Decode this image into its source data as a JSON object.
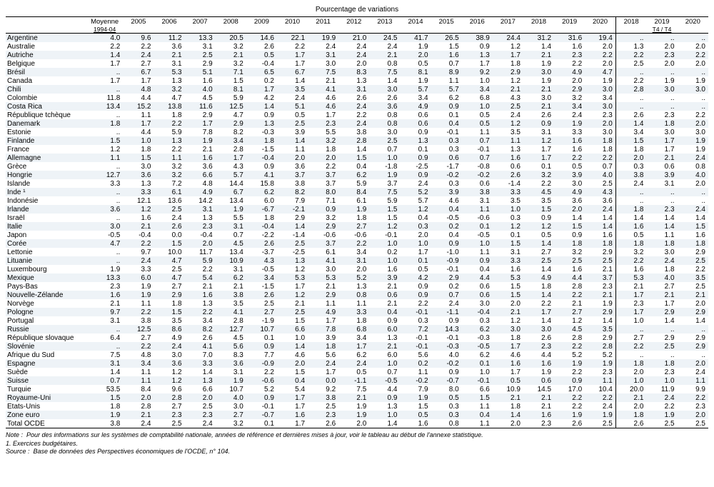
{
  "title": "Pourcentage de variations",
  "header": {
    "avg_label": "Moyenne",
    "avg_sub": "1994-04",
    "years": [
      "2005",
      "2006",
      "2007",
      "2008",
      "2009",
      "2010",
      "2011",
      "2012",
      "2013",
      "2014",
      "2015",
      "2016",
      "2017",
      "2018",
      "2019",
      "2020"
    ],
    "q_years": [
      "2018",
      "2019",
      "2020"
    ],
    "q_sub": "T4 / T4"
  },
  "rows": [
    {
      "label": "Argentine",
      "vals": [
        "4.0",
        "9.6",
        "11.2",
        "13.3",
        "20.5",
        "14.6",
        "22.1",
        "19.9",
        "21.0",
        "24.5",
        "41.7",
        "26.5",
        "38.9",
        "24.4",
        "31.2",
        "31.6",
        "19.4"
      ],
      "q": [
        "..",
        "..",
        ".."
      ]
    },
    {
      "label": "Australie",
      "vals": [
        "2.2",
        "2.2",
        "3.6",
        "3.1",
        "3.2",
        "2.6",
        "2.2",
        "2.4",
        "2.4",
        "2.4",
        "1.9",
        "1.5",
        "0.9",
        "1.2",
        "1.4",
        "1.6",
        "2.0"
      ],
      "q": [
        "1.3",
        "2.0",
        "2.0"
      ]
    },
    {
      "label": "Autriche",
      "vals": [
        "1.4",
        "2.4",
        "2.1",
        "2.5",
        "2.1",
        "0.5",
        "1.7",
        "3.1",
        "2.4",
        "2.1",
        "2.0",
        "1.6",
        "1.3",
        "1.7",
        "2.1",
        "2.3",
        "2.2"
      ],
      "q": [
        "2.2",
        "2.3",
        "2.2"
      ]
    },
    {
      "label": "Belgique",
      "vals": [
        "1.7",
        "2.7",
        "3.1",
        "2.9",
        "3.2",
        "-0.4",
        "1.7",
        "3.0",
        "2.0",
        "0.8",
        "0.5",
        "0.7",
        "1.7",
        "1.8",
        "1.9",
        "2.2",
        "2.0"
      ],
      "q": [
        "2.5",
        "2.0",
        "2.0"
      ]
    },
    {
      "label": "Brésil",
      "vals": [
        "..",
        "6.7",
        "5.3",
        "5.1",
        "7.1",
        "6.5",
        "6.7",
        "7.5",
        "8.3",
        "7.5",
        "8.1",
        "8.9",
        "9.2",
        "2.9",
        "3.0",
        "4.9",
        "4.7"
      ],
      "q": [
        "..",
        "..",
        ".."
      ]
    },
    {
      "label": "Canada",
      "vals": [
        "1.7",
        "1.7",
        "1.3",
        "1.6",
        "1.5",
        "0.2",
        "1.4",
        "2.1",
        "1.3",
        "1.4",
        "1.9",
        "1.1",
        "1.0",
        "1.2",
        "1.9",
        "2.0",
        "1.9"
      ],
      "q": [
        "2.2",
        "1.9",
        "1.9"
      ]
    },
    {
      "label": "Chili",
      "vals": [
        "..",
        "4.8",
        "3.2",
        "4.0",
        "8.1",
        "1.7",
        "3.5",
        "4.1",
        "3.1",
        "3.0",
        "5.7",
        "5.7",
        "3.4",
        "2.1",
        "2.1",
        "2.9",
        "3.0"
      ],
      "q": [
        "2.8",
        "3.0",
        "3.0"
      ]
    },
    {
      "label": "Colombie",
      "vals": [
        "11.8",
        "4.4",
        "4.7",
        "4.5",
        "5.9",
        "4.2",
        "2.4",
        "4.6",
        "2.6",
        "2.6",
        "3.4",
        "6.2",
        "6.8",
        "4.3",
        "3.0",
        "3.2",
        "3.4"
      ],
      "q": [
        "..",
        "..",
        ".."
      ]
    },
    {
      "label": "Costa Rica",
      "vals": [
        "13.4",
        "15.2",
        "13.8",
        "11.6",
        "12.5",
        "1.4",
        "5.1",
        "4.6",
        "2.4",
        "3.6",
        "4.9",
        "0.9",
        "1.0",
        "2.5",
        "2.1",
        "3.4",
        "3.0"
      ],
      "q": [
        "..",
        "..",
        ".."
      ]
    },
    {
      "label": "République tchèque",
      "vals": [
        "..",
        "1.1",
        "1.8",
        "2.9",
        "4.7",
        "0.9",
        "0.5",
        "1.7",
        "2.2",
        "0.8",
        "0.6",
        "0.1",
        "0.5",
        "2.4",
        "2.6",
        "2.4",
        "2.3"
      ],
      "q": [
        "2.6",
        "2.3",
        "2.2"
      ]
    },
    {
      "label": "Danemark",
      "vals": [
        "1.8",
        "1.7",
        "2.2",
        "1.7",
        "2.9",
        "1.3",
        "2.5",
        "2.3",
        "2.4",
        "0.8",
        "0.6",
        "0.4",
        "0.5",
        "1.2",
        "0.9",
        "1.9",
        "2.0"
      ],
      "q": [
        "1.4",
        "1.8",
        "2.0"
      ]
    },
    {
      "label": "Estonie",
      "vals": [
        "..",
        "4.4",
        "5.9",
        "7.8",
        "8.2",
        "-0.3",
        "3.9",
        "5.5",
        "3.8",
        "3.0",
        "0.9",
        "-0.1",
        "1.1",
        "3.5",
        "3.1",
        "3.3",
        "3.0"
      ],
      "q": [
        "3.4",
        "3.0",
        "3.0"
      ]
    },
    {
      "label": "Finlande",
      "vals": [
        "1.5",
        "1.0",
        "1.3",
        "1.9",
        "3.4",
        "1.8",
        "1.4",
        "3.2",
        "2.8",
        "2.5",
        "1.3",
        "0.3",
        "0.7",
        "1.1",
        "1.2",
        "1.6",
        "1.8"
      ],
      "q": [
        "1.5",
        "1.7",
        "1.9"
      ]
    },
    {
      "label": "France",
      "vals": [
        "1.2",
        "1.8",
        "2.2",
        "2.1",
        "2.8",
        "-1.5",
        "1.1",
        "1.8",
        "1.4",
        "0.7",
        "0.1",
        "0.3",
        "-0.1",
        "1.3",
        "1.7",
        "1.6",
        "1.8"
      ],
      "q": [
        "1.8",
        "1.7",
        "1.9"
      ]
    },
    {
      "label": "Allemagne",
      "vals": [
        "1.1",
        "1.5",
        "1.1",
        "1.6",
        "1.7",
        "-0.4",
        "2.0",
        "2.0",
        "1.5",
        "1.0",
        "0.9",
        "0.6",
        "0.7",
        "1.6",
        "1.7",
        "2.2",
        "2.2"
      ],
      "q": [
        "2.0",
        "2.1",
        "2.4"
      ]
    },
    {
      "label": "Grèce",
      "vals": [
        "..",
        "3.0",
        "3.2",
        "3.6",
        "4.3",
        "0.9",
        "3.6",
        "2.2",
        "0.4",
        "-1.8",
        "-2.5",
        "-1.7",
        "-0.8",
        "0.6",
        "0.1",
        "0.5",
        "0.7"
      ],
      "q": [
        "0.3",
        "0.6",
        "0.8"
      ]
    },
    {
      "label": "Hongrie",
      "vals": [
        "12.7",
        "3.6",
        "3.2",
        "6.6",
        "5.7",
        "4.1",
        "3.7",
        "3.7",
        "6.2",
        "1.9",
        "0.9",
        "-0.2",
        "-0.2",
        "2.6",
        "3.2",
        "3.9",
        "4.0"
      ],
      "q": [
        "3.8",
        "3.9",
        "4.0"
      ]
    },
    {
      "label": "Islande",
      "vals": [
        "3.3",
        "1.3",
        "7.2",
        "4.8",
        "14.4",
        "15.8",
        "3.8",
        "3.7",
        "5.9",
        "3.7",
        "2.4",
        "0.3",
        "0.6",
        "-1.4",
        "2.2",
        "3.0",
        "2.5"
      ],
      "q": [
        "2.4",
        "3.1",
        "2.0"
      ]
    },
    {
      "label": "Inde ¹",
      "vals": [
        "..",
        "3.3",
        "6.1",
        "4.9",
        "6.7",
        "6.2",
        "8.2",
        "8.0",
        "8.4",
        "7.5",
        "5.2",
        "3.9",
        "3.8",
        "3.3",
        "4.5",
        "4.9",
        "4.3"
      ],
      "q": [
        "..",
        "..",
        ".."
      ]
    },
    {
      "label": "Indonésie",
      "vals": [
        "..",
        "12.1",
        "13.6",
        "14.2",
        "13.4",
        "6.0",
        "7.9",
        "7.1",
        "6.1",
        "5.9",
        "5.7",
        "4.6",
        "3.1",
        "3.5",
        "3.5",
        "3.6",
        "3.6"
      ],
      "q": [
        "..",
        "..",
        ".."
      ]
    },
    {
      "label": "Irlande",
      "vals": [
        "3.6",
        "1.2",
        "2.5",
        "3.1",
        "1.9",
        "-6.7",
        "-2.1",
        "0.9",
        "1.9",
        "1.5",
        "1.2",
        "0.4",
        "1.1",
        "1.0",
        "1.5",
        "2.0",
        "2.4"
      ],
      "q": [
        "1.8",
        "2.3",
        "2.4"
      ]
    },
    {
      "label": "Israël",
      "vals": [
        "..",
        "1.6",
        "2.4",
        "1.3",
        "5.5",
        "1.8",
        "2.9",
        "3.2",
        "1.8",
        "1.5",
        "0.4",
        "-0.5",
        "-0.6",
        "0.3",
        "0.9",
        "1.4",
        "1.4"
      ],
      "q": [
        "1.4",
        "1.4",
        "1.4"
      ]
    },
    {
      "label": "Italie",
      "vals": [
        "3.0",
        "2.1",
        "2.6",
        "2.3",
        "3.1",
        "-0.4",
        "1.4",
        "2.9",
        "2.7",
        "1.2",
        "0.3",
        "0.2",
        "0.1",
        "1.2",
        "1.2",
        "1.5",
        "1.4"
      ],
      "q": [
        "1.6",
        "1.4",
        "1.5"
      ]
    },
    {
      "label": "Japon",
      "vals": [
        "-0.5",
        "-0.4",
        "0.0",
        "-0.4",
        "0.7",
        "-2.2",
        "-1.4",
        "-0.6",
        "-0.6",
        "-0.1",
        "2.0",
        "0.4",
        "-0.5",
        "0.1",
        "0.5",
        "0.9",
        "1.6"
      ],
      "q": [
        "0.5",
        "1.1",
        "1.6"
      ]
    },
    {
      "label": "Corée",
      "vals": [
        "4.7",
        "2.2",
        "1.5",
        "2.0",
        "4.5",
        "2.6",
        "2.5",
        "3.7",
        "2.2",
        "1.0",
        "1.0",
        "0.9",
        "1.0",
        "1.5",
        "1.4",
        "1.8",
        "1.8"
      ],
      "q": [
        "1.8",
        "1.8",
        "1.8"
      ]
    },
    {
      "label": "Lettonie",
      "vals": [
        "..",
        "9.7",
        "10.0",
        "11.7",
        "13.4",
        "-3.7",
        "-2.5",
        "6.1",
        "3.4",
        "0.2",
        "1.7",
        "-1.0",
        "1.1",
        "3.1",
        "2.7",
        "3.2",
        "2.9"
      ],
      "q": [
        "3.2",
        "3.0",
        "2.9"
      ]
    },
    {
      "label": "Lituanie",
      "vals": [
        "..",
        "2.4",
        "4.7",
        "5.9",
        "10.9",
        "4.3",
        "1.3",
        "4.1",
        "3.1",
        "1.0",
        "0.1",
        "-0.9",
        "0.9",
        "3.3",
        "2.5",
        "2.5",
        "2.5"
      ],
      "q": [
        "2.2",
        "2.4",
        "2.5"
      ]
    },
    {
      "label": "Luxembourg",
      "vals": [
        "1.9",
        "3.3",
        "2.5",
        "2.2",
        "3.1",
        "-0.5",
        "1.2",
        "3.0",
        "2.0",
        "1.6",
        "0.5",
        "-0.1",
        "0.4",
        "1.6",
        "1.4",
        "1.6",
        "2.1"
      ],
      "q": [
        "1.6",
        "1.8",
        "2.2"
      ]
    },
    {
      "label": "Mexique",
      "vals": [
        "13.3",
        "6.0",
        "4.7",
        "5.4",
        "6.2",
        "3.4",
        "5.3",
        "5.3",
        "5.2",
        "3.9",
        "4.2",
        "2.9",
        "4.4",
        "5.3",
        "4.9",
        "4.4",
        "3.7"
      ],
      "q": [
        "5.3",
        "4.0",
        "3.5"
      ]
    },
    {
      "label": "Pays-Bas",
      "vals": [
        "2.3",
        "1.9",
        "2.7",
        "2.1",
        "2.1",
        "-1.5",
        "1.7",
        "2.1",
        "1.3",
        "2.1",
        "0.9",
        "0.2",
        "0.6",
        "1.5",
        "1.8",
        "2.8",
        "2.3"
      ],
      "q": [
        "2.1",
        "2.7",
        "2.5"
      ]
    },
    {
      "label": "Nouvelle-Zélande",
      "vals": [
        "1.6",
        "1.9",
        "2.9",
        "1.6",
        "3.8",
        "2.6",
        "1.2",
        "2.9",
        "0.8",
        "0.6",
        "0.9",
        "0.7",
        "0.6",
        "1.5",
        "1.4",
        "2.2",
        "2.1"
      ],
      "q": [
        "1.7",
        "2.1",
        "2.1"
      ]
    },
    {
      "label": "Norvège",
      "vals": [
        "2.1",
        "1.1",
        "1.8",
        "1.3",
        "3.5",
        "2.5",
        "2.1",
        "1.1",
        "1.1",
        "2.1",
        "2.2",
        "2.4",
        "3.0",
        "2.0",
        "2.2",
        "2.1",
        "1.9"
      ],
      "q": [
        "2.3",
        "1.7",
        "2.0"
      ]
    },
    {
      "label": "Pologne",
      "vals": [
        "9.7",
        "2.2",
        "1.5",
        "2.2",
        "4.1",
        "2.7",
        "2.5",
        "4.9",
        "3.3",
        "0.4",
        "-0.1",
        "-1.1",
        "-0.4",
        "2.1",
        "1.7",
        "2.7",
        "2.9"
      ],
      "q": [
        "1.7",
        "2.9",
        "2.9"
      ]
    },
    {
      "label": "Portugal",
      "vals": [
        "3.1",
        "3.8",
        "3.5",
        "3.4",
        "2.8",
        "-1.9",
        "1.5",
        "1.7",
        "1.8",
        "0.9",
        "0.3",
        "0.9",
        "0.3",
        "1.2",
        "1.4",
        "1.2",
        "1.4"
      ],
      "q": [
        "1.0",
        "1.4",
        "1.4"
      ]
    },
    {
      "label": "Russie",
      "vals": [
        "..",
        "12.5",
        "8.6",
        "8.2",
        "12.7",
        "10.7",
        "6.6",
        "7.8",
        "6.8",
        "6.0",
        "7.2",
        "14.3",
        "6.2",
        "3.0",
        "3.0",
        "4.5",
        "3.5"
      ],
      "q": [
        "..",
        "..",
        ".."
      ]
    },
    {
      "label": "République slovaque",
      "vals": [
        "6.4",
        "2.7",
        "4.9",
        "2.6",
        "4.5",
        "0.1",
        "1.0",
        "3.9",
        "3.4",
        "1.3",
        "-0.1",
        "-0.1",
        "-0.3",
        "1.8",
        "2.6",
        "2.8",
        "2.9"
      ],
      "q": [
        "2.7",
        "2.9",
        "2.9"
      ]
    },
    {
      "label": "Slovénie",
      "vals": [
        "..",
        "2.2",
        "2.4",
        "4.1",
        "5.6",
        "0.9",
        "1.4",
        "1.8",
        "1.7",
        "2.1",
        "-0.1",
        "-0.3",
        "-0.5",
        "1.7",
        "2.3",
        "2.2",
        "2.8"
      ],
      "q": [
        "2.2",
        "2.5",
        "2.9"
      ]
    },
    {
      "label": "Afrique du Sud",
      "vals": [
        "7.5",
        "4.8",
        "3.0",
        "7.0",
        "8.3",
        "7.7",
        "4.6",
        "5.6",
        "6.2",
        "6.0",
        "5.6",
        "4.0",
        "6.2",
        "4.6",
        "4.4",
        "5.2",
        "5.2"
      ],
      "q": [
        "..",
        "..",
        ".."
      ]
    },
    {
      "label": "Espagne",
      "vals": [
        "3.1",
        "3.4",
        "3.6",
        "3.3",
        "3.6",
        "-0.9",
        "2.0",
        "2.4",
        "2.4",
        "1.0",
        "0.2",
        "-0.2",
        "0.1",
        "1.6",
        "1.6",
        "1.9",
        "1.9"
      ],
      "q": [
        "1.8",
        "1.8",
        "2.0"
      ]
    },
    {
      "label": "Suède",
      "vals": [
        "1.4",
        "1.1",
        "1.2",
        "1.4",
        "3.1",
        "2.2",
        "1.5",
        "1.7",
        "0.5",
        "0.7",
        "1.1",
        "0.9",
        "1.0",
        "1.7",
        "1.9",
        "2.2",
        "2.3"
      ],
      "q": [
        "2.0",
        "2.3",
        "2.4"
      ]
    },
    {
      "label": "Suisse",
      "vals": [
        "0.7",
        "1.1",
        "1.2",
        "1.3",
        "1.9",
        "-0.6",
        "0.4",
        "0.0",
        "-1.1",
        "-0.5",
        "-0.2",
        "-0.7",
        "-0.1",
        "0.5",
        "0.6",
        "0.9",
        "1.1"
      ],
      "q": [
        "1.0",
        "1.0",
        "1.1"
      ]
    },
    {
      "label": "Turquie",
      "vals": [
        "53.5",
        "8.4",
        "9.6",
        "6.6",
        "10.7",
        "5.2",
        "5.4",
        "9.2",
        "7.5",
        "4.4",
        "7.9",
        "8.0",
        "6.6",
        "10.9",
        "14.5",
        "17.0",
        "10.4"
      ],
      "q": [
        "20.0",
        "11.9",
        "9.9"
      ]
    },
    {
      "label": "Royaume-Uni",
      "vals": [
        "1.5",
        "2.0",
        "2.8",
        "2.0",
        "4.0",
        "0.9",
        "1.7",
        "3.8",
        "2.1",
        "0.9",
        "1.9",
        "0.5",
        "1.5",
        "2.1",
        "2.1",
        "2.2",
        "2.2"
      ],
      "q": [
        "2.1",
        "2.4",
        "2.2"
      ]
    },
    {
      "label": "Etats-Unis",
      "vals": [
        "1.8",
        "2.8",
        "2.7",
        "2.5",
        "3.0",
        "-0.1",
        "1.7",
        "2.5",
        "1.9",
        "1.3",
        "1.5",
        "0.3",
        "1.1",
        "1.8",
        "2.1",
        "2.2",
        "2.4"
      ],
      "q": [
        "2.0",
        "2.2",
        "2.3"
      ]
    },
    {
      "label": "Zone euro",
      "vals": [
        "1.9",
        "2.1",
        "2.3",
        "2.3",
        "2.7",
        "-0.7",
        "1.6",
        "2.3",
        "1.9",
        "1.0",
        "0.5",
        "0.3",
        "0.4",
        "1.4",
        "1.6",
        "1.9",
        "1.9"
      ],
      "q": [
        "1.8",
        "1.9",
        "2.0"
      ]
    },
    {
      "label": "Total OCDE",
      "vals": [
        "3.8",
        "2.4",
        "2.5",
        "2.4",
        "3.2",
        "0.1",
        "1.7",
        "2.6",
        "2.0",
        "1.4",
        "1.6",
        "0.8",
        "1.1",
        "2.0",
        "2.3",
        "2.6",
        "2.5"
      ],
      "q": [
        "2.6",
        "2.5",
        "2.5"
      ]
    }
  ],
  "footnotes": {
    "note_label": "Note :",
    "note_text": "Pour des informations sur les systèmes de comptabilité nationale, années de référence et dernières mises à jour, voir le tableau au début de l'annexe statistique.",
    "fn1": "1.  Exercices budgétaires.",
    "source_label": "Source :",
    "source_text": "Base de données des Perspectives économiques de l'OCDE, n° 104."
  }
}
